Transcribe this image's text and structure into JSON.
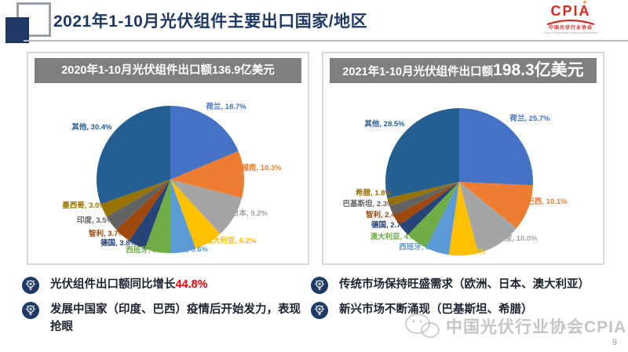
{
  "header": {
    "title": "2021年1-10月光伏组件主要出口国家/地区",
    "logo": {
      "name": "CPIA",
      "subtitle": "中国光伏行业协会",
      "subtitle_en": "China Photovoltaic Industry Association",
      "brand_color": "#D42B23"
    }
  },
  "panels": [
    {
      "title_segments": [
        {
          "text": "2020年1-10月光伏组件出口额136.9亿美元",
          "big": false
        }
      ]
    },
    {
      "title_segments": [
        {
          "text": "2021年1-10月光伏组件出口额",
          "big": false
        },
        {
          "text": "198.3亿美元",
          "big": true
        }
      ]
    }
  ],
  "chart_data": [
    {
      "type": "pie",
      "title": "2020年1-10月光伏组件出口额136.9亿美元",
      "unit": "%",
      "slices": [
        {
          "label": "荷兰",
          "value": 18.7,
          "color": "#4472C4"
        },
        {
          "label": "越南",
          "value": 10.3,
          "color": "#ED7D31"
        },
        {
          "label": "日本",
          "value": 9.2,
          "color": "#A5A5A5"
        },
        {
          "label": "澳大利亚",
          "value": 6.2,
          "color": "#FFC000"
        },
        {
          "label": "巴西",
          "value": 5.6,
          "color": "#5B9BD5"
        },
        {
          "label": "西班牙",
          "value": 5.6,
          "color": "#70AD47"
        },
        {
          "label": "德国",
          "value": 3.8,
          "color": "#264478"
        },
        {
          "label": "智利",
          "value": 3.7,
          "color": "#9E480E"
        },
        {
          "label": "印度",
          "value": 3.5,
          "color": "#636363"
        },
        {
          "label": "墨西哥",
          "value": 3.0,
          "color": "#997300"
        },
        {
          "label": "其他",
          "value": 30.4,
          "color": "#255E91"
        }
      ]
    },
    {
      "type": "pie",
      "title": "2021年1-10月光伏组件出口额198.3亿美元",
      "unit": "%",
      "slices": [
        {
          "label": "荷兰",
          "value": 25.7,
          "color": "#4472C4"
        },
        {
          "label": "巴西",
          "value": 10.1,
          "color": "#ED7D31"
        },
        {
          "label": "印度",
          "value": 10.0,
          "color": "#A5A5A5"
        },
        {
          "label": "日本",
          "value": 6.4,
          "color": "#FFC000"
        },
        {
          "label": "西班牙",
          "value": 5.2,
          "color": "#5B9BD5"
        },
        {
          "label": "澳大利亚",
          "value": 4.8,
          "color": "#70AD47"
        },
        {
          "label": "德国",
          "value": 2.7,
          "color": "#264478"
        },
        {
          "label": "智利",
          "value": 2.4,
          "color": "#9E480E"
        },
        {
          "label": "巴基斯坦",
          "value": 2.3,
          "color": "#636363"
        },
        {
          "label": "希腊",
          "value": 1.8,
          "color": "#997300"
        },
        {
          "label": "其他",
          "value": 28.5,
          "color": "#255E91"
        }
      ]
    }
  ],
  "bullets": {
    "icon_color": "#1F3864",
    "left": [
      {
        "segments": [
          {
            "text": "光伏组件出口额同比增长"
          },
          {
            "text": "44.8%",
            "color": "#FF0000"
          }
        ]
      },
      {
        "segments": [
          {
            "text": "发展中国家（印度、巴西）疫情后开始发力，表现抢眼"
          }
        ]
      }
    ],
    "right": [
      {
        "segments": [
          {
            "text": "传统市场保持旺盛需求（欧洲、日本、澳大利亚）"
          }
        ]
      },
      {
        "segments": [
          {
            "text": "新兴市场不断涌现（巴基斯坦、希腊）"
          }
        ]
      }
    ]
  },
  "watermark": {
    "text": "中国光伏行业协会CPIA"
  },
  "page_number": "9"
}
